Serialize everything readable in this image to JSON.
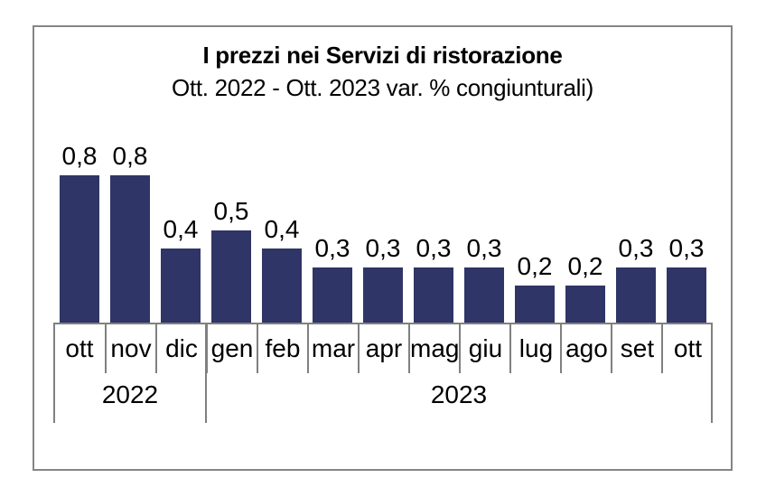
{
  "window": {
    "background": "#ffffff"
  },
  "chart_data": {
    "type": "bar",
    "title": "I prezzi nei Servizi di ristorazione",
    "subtitle": "Ott. 2022 - Ott. 2023 var. % congiunturali)",
    "categories": [
      "ott",
      "nov",
      "dic",
      "gen",
      "feb",
      "mar",
      "apr",
      "mag",
      "giu",
      "lug",
      "ago",
      "set",
      "ott"
    ],
    "values": [
      0.8,
      0.8,
      0.4,
      0.5,
      0.4,
      0.3,
      0.3,
      0.3,
      0.3,
      0.2,
      0.2,
      0.3,
      0.3
    ],
    "value_labels": [
      "0,8",
      "0,8",
      "0,4",
      "0,5",
      "0,4",
      "0,3",
      "0,3",
      "0,3",
      "0,3",
      "0,2",
      "0,2",
      "0,3",
      "0,3"
    ],
    "year_groups": [
      {
        "label": "2022",
        "span": 3
      },
      {
        "label": "2023",
        "span": 10
      }
    ],
    "xlabel": "",
    "ylabel": "",
    "ylim": [
      0,
      0.9
    ],
    "grid": false,
    "legend": false,
    "bar_color": "#2F3566",
    "axis_color": "#808080",
    "text_color": "#000000"
  }
}
